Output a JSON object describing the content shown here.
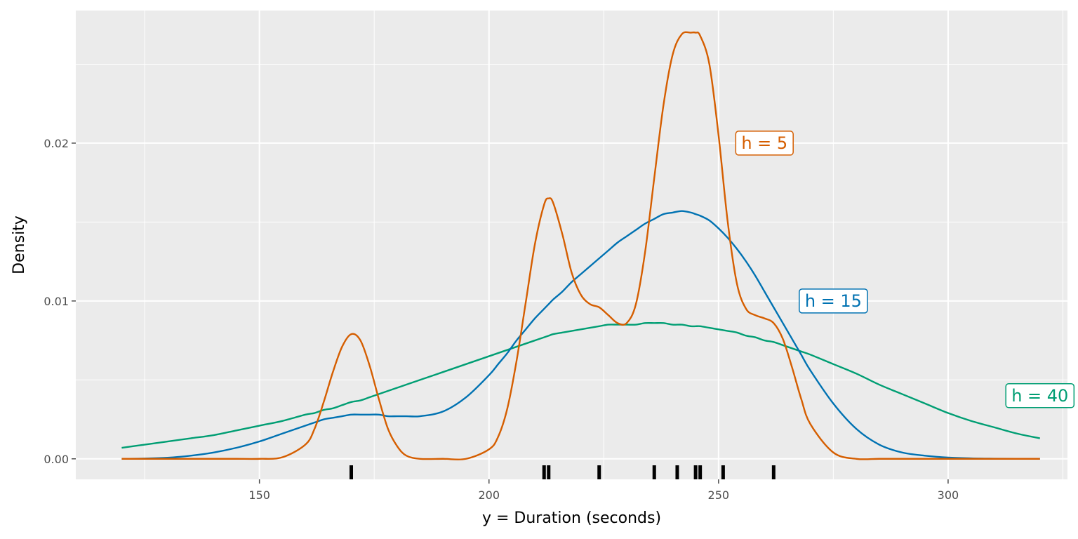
{
  "chart_data": {
    "type": "line",
    "xlabel": "y = Duration (seconds)",
    "ylabel": "Density",
    "xlim": [
      110,
      326
    ],
    "ylim": [
      -0.0013,
      0.0284
    ],
    "x_ticks": [
      150,
      200,
      250,
      300
    ],
    "x_tick_labels": [
      "150",
      "200",
      "250",
      "300"
    ],
    "y_ticks": [
      0.0,
      0.01,
      0.02
    ],
    "y_tick_labels": [
      "0.00",
      "0.01",
      "0.02"
    ],
    "grid": true,
    "x": [
      120,
      125,
      130,
      135,
      140,
      145,
      150,
      155,
      160,
      162,
      164,
      166,
      168,
      170,
      172,
      174,
      176,
      178,
      180,
      182,
      185,
      190,
      195,
      200,
      202,
      204,
      206,
      208,
      210,
      212,
      213,
      214,
      216,
      218,
      220,
      222,
      224,
      226,
      228,
      230,
      232,
      234,
      236,
      238,
      240,
      242,
      244,
      245,
      246,
      248,
      250,
      252,
      254,
      256,
      258,
      260,
      262,
      264,
      266,
      268,
      270,
      275,
      280,
      285,
      290,
      295,
      300,
      305,
      310,
      315,
      320
    ],
    "series": [
      {
        "name": "h = 5",
        "color": "#D55E00",
        "values": [
          0,
          0,
          0,
          0,
          0,
          0,
          0,
          0.0001,
          0.0009,
          0.0019,
          0.0036,
          0.0055,
          0.0071,
          0.0079,
          0.0075,
          0.0059,
          0.0038,
          0.0019,
          0.0008,
          0.0002,
          0,
          0,
          0,
          0.0006,
          0.0014,
          0.0032,
          0.0062,
          0.0099,
          0.0136,
          0.0161,
          0.0165,
          0.0162,
          0.0142,
          0.0118,
          0.0104,
          0.0098,
          0.0096,
          0.0091,
          0.0086,
          0.0086,
          0.0098,
          0.0131,
          0.0178,
          0.0224,
          0.0256,
          0.0269,
          0.027,
          0.027,
          0.0268,
          0.025,
          0.0205,
          0.015,
          0.0111,
          0.0095,
          0.0091,
          0.0089,
          0.0086,
          0.0076,
          0.0058,
          0.0038,
          0.0022,
          0.0004,
          0,
          0,
          0,
          0,
          0,
          0,
          0,
          0,
          0
        ]
      },
      {
        "name": "h = 15",
        "color": "#0072B2",
        "values": [
          0,
          2e-05,
          7e-05,
          0.0002,
          0.0004,
          0.0007,
          0.0011,
          0.0016,
          0.0021,
          0.0023,
          0.0025,
          0.0026,
          0.0027,
          0.0028,
          0.0028,
          0.0028,
          0.0028,
          0.0027,
          0.0027,
          0.0027,
          0.0027,
          0.003,
          0.0039,
          0.0053,
          0.006,
          0.0067,
          0.0075,
          0.0082,
          0.0089,
          0.0095,
          0.0098,
          0.0101,
          0.0106,
          0.0112,
          0.0117,
          0.0122,
          0.0127,
          0.0132,
          0.0137,
          0.0141,
          0.0145,
          0.0149,
          0.0152,
          0.0155,
          0.0156,
          0.0157,
          0.0156,
          0.0155,
          0.0154,
          0.0151,
          0.0146,
          0.014,
          0.0133,
          0.0125,
          0.0116,
          0.0106,
          0.0096,
          0.0086,
          0.0076,
          0.0066,
          0.0056,
          0.0035,
          0.0019,
          0.0009,
          0.0004,
          0.0002,
          8e-05,
          3e-05,
          1e-05,
          0,
          0
        ]
      },
      {
        "name": "h = 40",
        "color": "#009E73",
        "values": [
          0.0007,
          0.0009,
          0.0011,
          0.0013,
          0.0015,
          0.0018,
          0.0021,
          0.0024,
          0.0028,
          0.0029,
          0.0031,
          0.0032,
          0.0034,
          0.0036,
          0.0037,
          0.0039,
          0.0041,
          0.0043,
          0.0045,
          0.0047,
          0.005,
          0.0055,
          0.006,
          0.0065,
          0.0067,
          0.0069,
          0.0071,
          0.0073,
          0.0075,
          0.0077,
          0.0078,
          0.0079,
          0.008,
          0.0081,
          0.0082,
          0.0083,
          0.0084,
          0.0085,
          0.0085,
          0.0085,
          0.0085,
          0.0086,
          0.0086,
          0.0086,
          0.0085,
          0.0085,
          0.0084,
          0.0084,
          0.0084,
          0.0083,
          0.0082,
          0.0081,
          0.008,
          0.0078,
          0.0077,
          0.0075,
          0.0074,
          0.0072,
          0.007,
          0.0068,
          0.0066,
          0.006,
          0.0054,
          0.0047,
          0.0041,
          0.0035,
          0.0029,
          0.0024,
          0.002,
          0.0016,
          0.0013
        ]
      }
    ],
    "rug": [
      170,
      212,
      213,
      224,
      236,
      241,
      245,
      246,
      251,
      262
    ],
    "annotations": [
      {
        "text": "h = 5",
        "x": 260,
        "y": 0.02,
        "color": "#D55E00"
      },
      {
        "text": "h = 15",
        "x": 275,
        "y": 0.01,
        "color": "#0072B2"
      },
      {
        "text": "h = 40",
        "x": 320,
        "y": 0.004,
        "color": "#009E73"
      }
    ],
    "colors": {
      "panel": "#EBEBEB",
      "grid": "#FFFFFF",
      "rug": "#000000",
      "tick": "#4d4d4d"
    }
  }
}
